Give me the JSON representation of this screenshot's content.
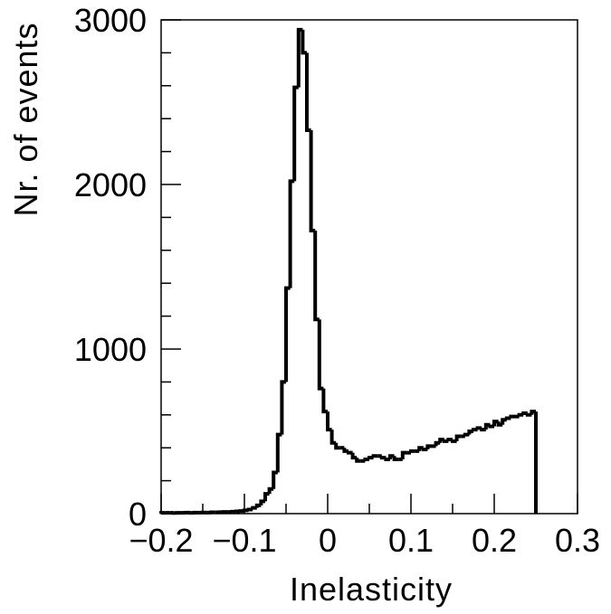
{
  "chart_data": {
    "type": "histogram",
    "title": "",
    "xlabel": "Inelasticity",
    "ylabel": "Nr. of events",
    "xlim": [
      -0.2,
      0.3
    ],
    "ylim": [
      0,
      3000
    ],
    "grid": false,
    "line_color": "#000000",
    "x_tick_labels": [
      "−0.2",
      "−0.1",
      "0",
      "0.1",
      "0.2",
      "0.3"
    ],
    "x_tick_values": [
      -0.2,
      -0.1,
      0,
      0.1,
      0.2,
      0.3
    ],
    "y_tick_labels": [
      "0",
      "1000",
      "2000",
      "3000"
    ],
    "y_tick_values": [
      0,
      1000,
      2000,
      3000
    ],
    "bin_edges_start": -0.2,
    "bin_width": 0.005,
    "series": [
      {
        "values": [
          5,
          5,
          5,
          4,
          5,
          5,
          6,
          5,
          6,
          6,
          7,
          6,
          8,
          8,
          9,
          10,
          10,
          12,
          14,
          16,
          20,
          25,
          35,
          50,
          75,
          120,
          150,
          250,
          480,
          800,
          1370,
          2020,
          2590,
          2940,
          2800,
          2330,
          1720,
          1180,
          760,
          620,
          510,
          430,
          400,
          400,
          380,
          370,
          340,
          320,
          320,
          330,
          340,
          350,
          350,
          340,
          330,
          350,
          330,
          330,
          370,
          370,
          380,
          380,
          400,
          390,
          410,
          410,
          430,
          450,
          440,
          450,
          440,
          470,
          470,
          480,
          500,
          510,
          520,
          510,
          540,
          530,
          560,
          540,
          570,
          580,
          590,
          590,
          600,
          610,
          600,
          620
        ]
      }
    ]
  }
}
